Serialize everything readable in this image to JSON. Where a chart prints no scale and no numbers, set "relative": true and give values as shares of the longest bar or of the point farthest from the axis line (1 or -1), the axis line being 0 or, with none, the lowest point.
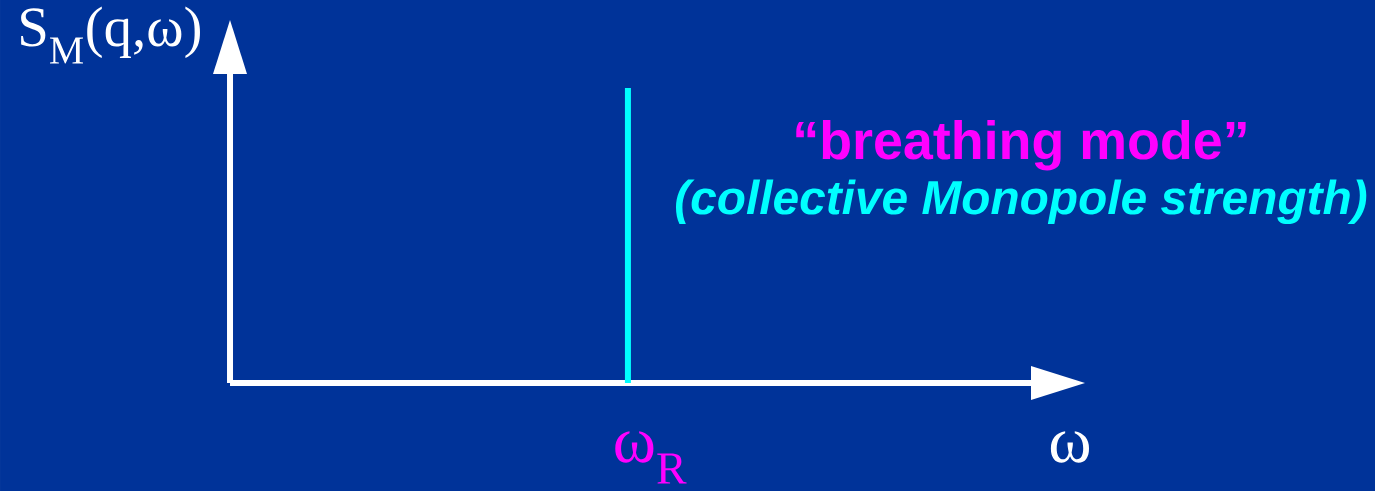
{
  "chart_data": {
    "type": "bar",
    "relative": true,
    "categories": [
      "ω$_{R}$"
    ],
    "values": [
      1
    ],
    "color": "#00ffff",
    "ylabel": "S$_{M}$(q,ω)",
    "xlabel": "ω",
    "annotations": [
      "“breathing mode”",
      "(collective Monopole strength)"
    ]
  }
}
